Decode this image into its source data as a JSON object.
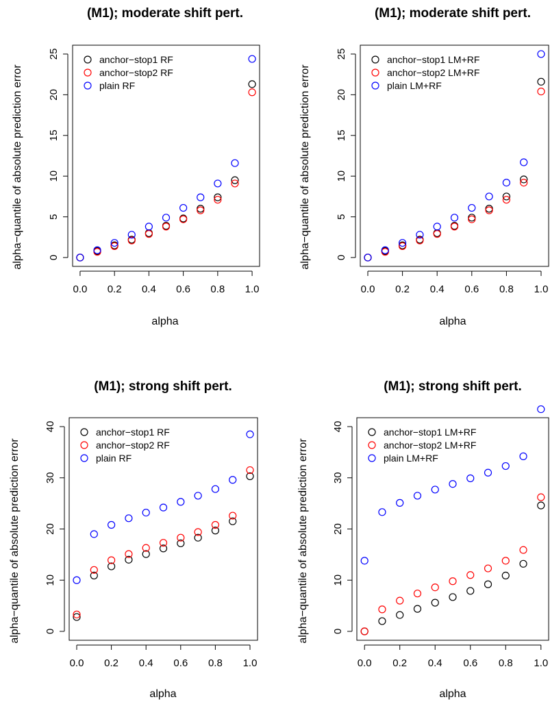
{
  "chart_data": [
    {
      "type": "scatter",
      "title": "(M1); moderate shift pert.",
      "xlabel": "alpha",
      "ylabel": "alpha−quantile of absolute prediction error",
      "xlim": [
        0,
        1
      ],
      "ylim": [
        0,
        25
      ],
      "xticks": [
        0.0,
        0.2,
        0.4,
        0.6,
        0.8,
        1.0
      ],
      "yticks": [
        0,
        5,
        10,
        15,
        20,
        25
      ],
      "legend_position": "top-left",
      "grid": false,
      "x": [
        0.0,
        0.1,
        0.2,
        0.3,
        0.4,
        0.5,
        0.6,
        0.7,
        0.8,
        0.9,
        1.0
      ],
      "series": [
        {
          "name": "anchor−stop1 RF",
          "color": "#000000",
          "values": [
            0.0,
            0.8,
            1.5,
            2.2,
            3.0,
            3.9,
            4.8,
            6.0,
            7.4,
            9.5,
            21.3
          ]
        },
        {
          "name": "anchor−stop2 RF",
          "color": "#ff0000",
          "values": [
            0.0,
            0.7,
            1.4,
            2.1,
            2.9,
            3.8,
            4.7,
            5.8,
            7.1,
            9.1,
            20.3
          ]
        },
        {
          "name": "plain RF",
          "color": "#0000ff",
          "values": [
            0.0,
            0.9,
            1.8,
            2.8,
            3.8,
            4.9,
            6.1,
            7.4,
            9.1,
            11.6,
            24.4
          ]
        }
      ]
    },
    {
      "type": "scatter",
      "title": "(M1); moderate shift pert.",
      "xlabel": "alpha",
      "ylabel": "alpha−quantile of absolute prediction error",
      "xlim": [
        0,
        1
      ],
      "ylim": [
        0,
        25
      ],
      "xticks": [
        0.0,
        0.2,
        0.4,
        0.6,
        0.8,
        1.0
      ],
      "yticks": [
        0,
        5,
        10,
        15,
        20,
        25
      ],
      "legend_position": "top-left",
      "grid": false,
      "x": [
        0.0,
        0.1,
        0.2,
        0.3,
        0.4,
        0.5,
        0.6,
        0.7,
        0.8,
        0.9,
        1.0
      ],
      "series": [
        {
          "name": "anchor−stop1 LM+RF",
          "color": "#000000",
          "values": [
            0.0,
            0.8,
            1.5,
            2.2,
            3.0,
            3.9,
            4.9,
            6.0,
            7.5,
            9.6,
            21.6
          ]
        },
        {
          "name": "anchor−stop2 LM+RF",
          "color": "#ff0000",
          "values": [
            0.0,
            0.7,
            1.4,
            2.1,
            2.9,
            3.8,
            4.7,
            5.8,
            7.1,
            9.2,
            20.4
          ]
        },
        {
          "name": "plain LM+RF",
          "color": "#0000ff",
          "values": [
            0.0,
            0.9,
            1.8,
            2.8,
            3.8,
            4.9,
            6.1,
            7.5,
            9.2,
            11.7,
            25.0
          ]
        }
      ]
    },
    {
      "type": "scatter",
      "title": "(M1); strong shift pert.",
      "xlabel": "alpha",
      "ylabel": "alpha−quantile of absolute prediction error",
      "xlim": [
        0,
        1
      ],
      "ylim": [
        0,
        40
      ],
      "xticks": [
        0.0,
        0.2,
        0.4,
        0.6,
        0.8,
        1.0
      ],
      "yticks": [
        0,
        10,
        20,
        30,
        40
      ],
      "legend_position": "top-left",
      "grid": false,
      "x": [
        0.0,
        0.1,
        0.2,
        0.3,
        0.4,
        0.5,
        0.6,
        0.7,
        0.8,
        0.9,
        1.0
      ],
      "series": [
        {
          "name": "anchor−stop1 RF",
          "color": "#000000",
          "values": [
            2.8,
            10.9,
            12.7,
            14.0,
            15.1,
            16.2,
            17.2,
            18.3,
            19.7,
            21.5,
            30.3
          ]
        },
        {
          "name": "anchor−stop2 RF",
          "color": "#ff0000",
          "values": [
            3.3,
            12.0,
            13.9,
            15.1,
            16.3,
            17.3,
            18.3,
            19.4,
            20.8,
            22.6,
            31.5
          ]
        },
        {
          "name": "plain RF",
          "color": "#0000ff",
          "values": [
            10.0,
            19.0,
            20.8,
            22.1,
            23.2,
            24.2,
            25.3,
            26.5,
            27.8,
            29.6,
            38.5
          ]
        }
      ]
    },
    {
      "type": "scatter",
      "title": "(M1); strong shift pert.",
      "xlabel": "alpha",
      "ylabel": "alpha−quantile of absolute prediction error",
      "xlim": [
        0,
        1
      ],
      "ylim": [
        0,
        40
      ],
      "xticks": [
        0.0,
        0.2,
        0.4,
        0.6,
        0.8,
        1.0
      ],
      "yticks": [
        0,
        10,
        20,
        30,
        40
      ],
      "legend_position": "top-left",
      "grid": false,
      "x": [
        0.0,
        0.1,
        0.2,
        0.3,
        0.4,
        0.5,
        0.6,
        0.7,
        0.8,
        0.9,
        1.0
      ],
      "series": [
        {
          "name": "anchor−stop1 LM+RF",
          "color": "#000000",
          "values": [
            0.0,
            2.0,
            3.2,
            4.4,
            5.6,
            6.7,
            7.9,
            9.2,
            10.9,
            13.2,
            24.6
          ]
        },
        {
          "name": "anchor−stop2 LM+RF",
          "color": "#ff0000",
          "values": [
            0.0,
            4.3,
            6.0,
            7.4,
            8.6,
            9.8,
            11.0,
            12.3,
            13.8,
            15.9,
            26.2
          ]
        },
        {
          "name": "plain LM+RF",
          "color": "#0000ff",
          "values": [
            13.8,
            23.3,
            25.1,
            26.5,
            27.7,
            28.8,
            29.9,
            31.0,
            32.3,
            34.2,
            43.4
          ]
        }
      ]
    }
  ]
}
